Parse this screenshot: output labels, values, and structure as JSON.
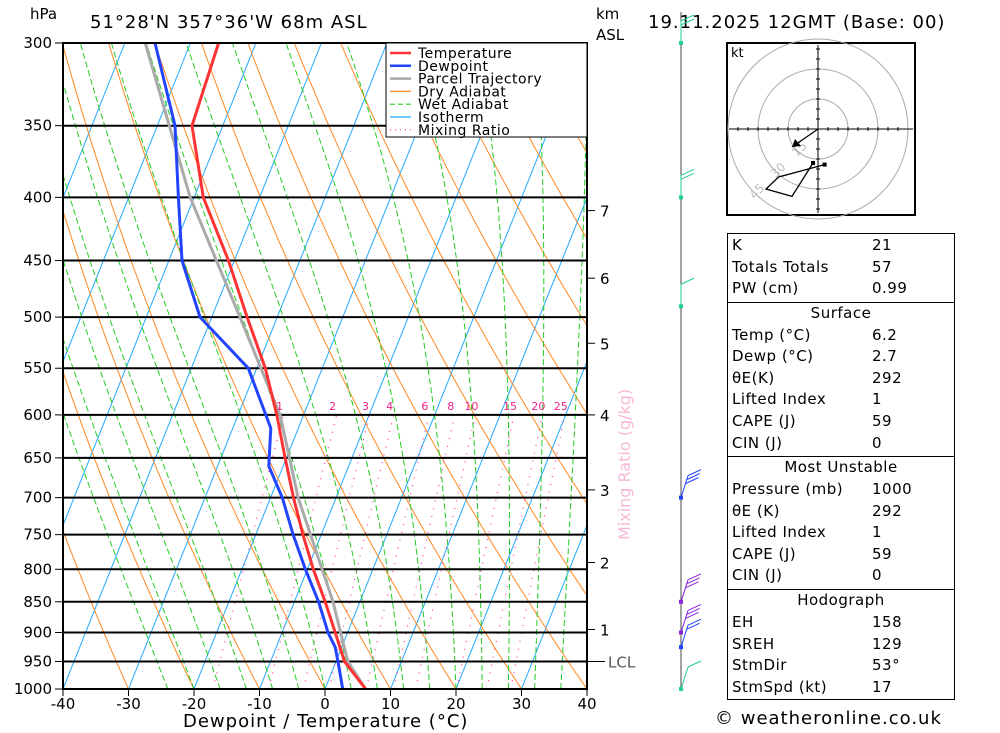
{
  "header": {
    "pressure_unit": "hPa",
    "location": "51°28'N 357°36'W 68m ASL",
    "km_label": "km",
    "asl_label": "ASL",
    "datetime": "19.11.2025 12GMT (Base: 00)"
  },
  "legend": [
    {
      "label": "Temperature",
      "color": "#ff3333",
      "style": "solid"
    },
    {
      "label": "Dewpoint",
      "color": "#2244ff",
      "style": "solid"
    },
    {
      "label": "Parcel Trajectory",
      "color": "#aaaaaa",
      "style": "solid"
    },
    {
      "label": "Dry Adiabat",
      "color": "#ff8822",
      "style": "solid"
    },
    {
      "label": "Wet Adiabat",
      "color": "#22cc22",
      "style": "dashed"
    },
    {
      "label": "Isotherm",
      "color": "#22aaff",
      "style": "solid"
    },
    {
      "label": "Mixing Ratio",
      "color": "#ff3399",
      "style": "dotted"
    }
  ],
  "chart_data": {
    "type": "line",
    "subtype": "skew-T log-p",
    "xlabel": "Dewpoint / Temperature (°C)",
    "ylabel": "hPa",
    "secondary_label": "Mixing Ratio (g/kg)",
    "xlim": [
      -40,
      40
    ],
    "ylim": [
      1000,
      300
    ],
    "x_ticks": [
      -40,
      -30,
      -20,
      -10,
      0,
      10,
      20,
      30,
      40
    ],
    "pressure_levels": [
      300,
      350,
      400,
      450,
      500,
      550,
      600,
      650,
      700,
      750,
      800,
      850,
      900,
      950,
      1000
    ],
    "km_ticks": [
      {
        "label": "7",
        "p": 410
      },
      {
        "label": "6",
        "p": 465
      },
      {
        "label": "5",
        "p": 525
      },
      {
        "label": "4",
        "p": 600
      },
      {
        "label": "3",
        "p": 690
      },
      {
        "label": "2",
        "p": 790
      },
      {
        "label": "1",
        "p": 895
      }
    ],
    "lcl": {
      "label": "LCL",
      "p": 950
    },
    "mixing_ratio_labels": [
      "1",
      "2",
      "3",
      "4",
      "6",
      "8",
      "10",
      "15",
      "20",
      "25"
    ],
    "series": [
      {
        "name": "Temperature",
        "color": "#ff3333",
        "p": [
          1000,
          950,
          900,
          850,
          800,
          750,
          700,
          650,
          600,
          550,
          500,
          450,
          400,
          350,
          300
        ],
        "t": [
          6.2,
          1.3,
          -1.9,
          -5.3,
          -9.1,
          -12.8,
          -16.5,
          -20.2,
          -24.1,
          -28.7,
          -34.6,
          -40.9,
          -48.6,
          -54.7,
          -55.7
        ]
      },
      {
        "name": "Dewpoint",
        "color": "#2244ff",
        "p": [
          1000,
          950,
          925,
          900,
          850,
          800,
          750,
          700,
          660,
          615,
          550,
          500,
          450,
          400,
          350,
          300
        ],
        "t": [
          2.7,
          0.3,
          -1.0,
          -3.0,
          -6.3,
          -10.3,
          -14.3,
          -18.2,
          -22.2,
          -24.2,
          -31.3,
          -41.8,
          -48.0,
          -52.4,
          -57.3,
          -65.4
        ]
      },
      {
        "name": "Parcel Trajectory",
        "color": "#aaaaaa",
        "p": [
          1000,
          950,
          850,
          700,
          600,
          500,
          400,
          300
        ],
        "t": [
          6.2,
          1.8,
          -4.1,
          -15.8,
          -23.6,
          -35.7,
          -50.6,
          -66.9
        ]
      }
    ]
  },
  "winds": [
    {
      "p": 1000,
      "speed": 10,
      "color": "#22cc99"
    },
    {
      "p": 925,
      "speed": 15,
      "color": "#2244ff"
    },
    {
      "p": 900,
      "speed": 25,
      "color": "#8822dd"
    },
    {
      "p": 850,
      "speed": 30,
      "color": "#8822dd"
    },
    {
      "p": 700,
      "speed": 25,
      "color": "#2244ff"
    },
    {
      "p": 490,
      "speed": 10,
      "color": "#22cc99"
    },
    {
      "p": 400,
      "speed": 15,
      "color": "#22cc99"
    },
    {
      "p": 300,
      "speed": 20,
      "color": "#22cc99"
    }
  ],
  "hodograph": {
    "unit_label": "kt",
    "rings": [
      "15",
      "30",
      "45"
    ],
    "storm_motion": {
      "u": -13,
      "v": -9
    },
    "trace": [
      {
        "u": 3.3,
        "v": -17.8
      },
      {
        "u": -19.7,
        "v": -24
      },
      {
        "u": -26,
        "v": -30
      },
      {
        "u": -13,
        "v": -33.7
      },
      {
        "u": -2.5,
        "v": -17
      }
    ]
  },
  "indices": {
    "rows": [
      {
        "label": "K",
        "value": "21"
      },
      {
        "label": "Totals Totals",
        "value": "57"
      },
      {
        "label": "PW (cm)",
        "value": "0.99"
      }
    ],
    "surface": {
      "title": "Surface",
      "rows": [
        {
          "label": "Temp (°C)",
          "value": "6.2"
        },
        {
          "label": "Dewp (°C)",
          "value": "2.7"
        },
        {
          "label": "θE(K)",
          "value": "292"
        },
        {
          "label": "Lifted Index",
          "value": "1"
        },
        {
          "label": "CAPE (J)",
          "value": "59"
        },
        {
          "label": "CIN (J)",
          "value": "0"
        }
      ]
    },
    "most_unstable": {
      "title": "Most Unstable",
      "rows": [
        {
          "label": "Pressure (mb)",
          "value": "1000"
        },
        {
          "label": "θE (K)",
          "value": "292"
        },
        {
          "label": "Lifted Index",
          "value": "1"
        },
        {
          "label": "CAPE (J)",
          "value": "59"
        },
        {
          "label": "CIN (J)",
          "value": "0"
        }
      ]
    },
    "hodograph": {
      "title": "Hodograph",
      "rows": [
        {
          "label": "EH",
          "value": "158"
        },
        {
          "label": "SREH",
          "value": "129"
        },
        {
          "label": "StmDir",
          "value": "53°"
        },
        {
          "label": "StmSpd (kt)",
          "value": "17"
        }
      ]
    }
  },
  "copyright": "© weatheronline.co.uk"
}
